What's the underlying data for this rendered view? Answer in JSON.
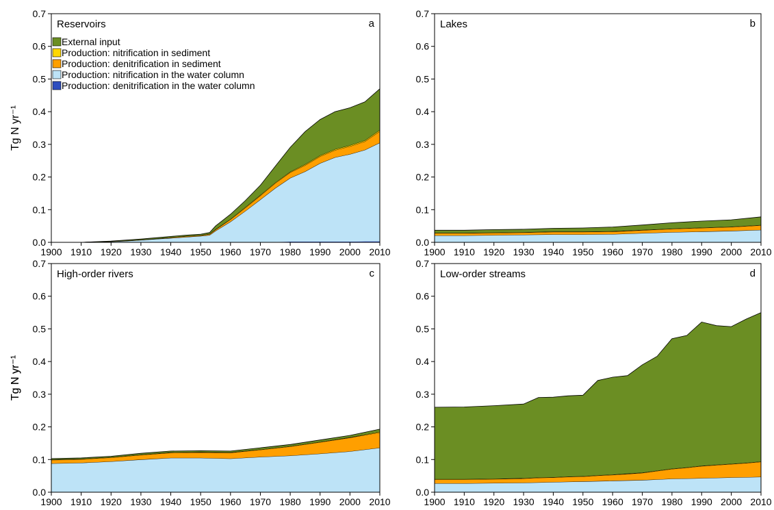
{
  "figure": {
    "colors": {
      "external_input": "#6b8e23",
      "nitrification_sediment": "#ffd700",
      "denitrification_sediment": "#ff9f00",
      "nitrification_water": "#bde3f7",
      "denitrification_water": "#2e4ebf"
    },
    "legend": [
      {
        "label": "External input",
        "color_key": "external_input"
      },
      {
        "label": "Production: nitrification in sediment",
        "color_key": "nitrification_sediment"
      },
      {
        "label": "Production: denitrification in sediment",
        "color_key": "denitrification_sediment"
      },
      {
        "label": "Production: nitrification in the water column",
        "color_key": "nitrification_water"
      },
      {
        "label": "Production: denitrification in the water column",
        "color_key": "denitrification_water"
      }
    ]
  },
  "chart_data": [
    {
      "type": "area",
      "panel": "a",
      "title": "Reservoirs",
      "ylabel": "Tg N yr⁻¹",
      "xlim": [
        1900,
        2010
      ],
      "ylim": [
        0,
        0.7
      ],
      "xticks": [
        1900,
        1910,
        1920,
        1930,
        1940,
        1950,
        1960,
        1970,
        1980,
        1990,
        2000,
        2010
      ],
      "yticks": [
        "0.0",
        "0.1",
        "0.2",
        "0.3",
        "0.4",
        "0.5",
        "0.6",
        "0.7"
      ],
      "legend_position": "top-left",
      "stacked": true,
      "x": [
        1900,
        1910,
        1915,
        1920,
        1925,
        1930,
        1935,
        1940,
        1945,
        1950,
        1953,
        1955,
        1960,
        1965,
        1970,
        1975,
        1980,
        1985,
        1990,
        1995,
        2000,
        2005,
        2010
      ],
      "series": [
        {
          "name": "Production: denitrification in the water column",
          "color_key": "denitrification_water",
          "values": [
            0,
            0,
            0,
            0,
            0,
            0,
            0,
            0,
            0,
            0,
            0,
            0,
            0.001,
            0.001,
            0.001,
            0.001,
            0.002,
            0.002,
            0.002,
            0.002,
            0.002,
            0.003,
            0.003
          ]
        },
        {
          "name": "Production: nitrification in the water column",
          "color_key": "nitrification_water",
          "values": [
            0,
            0,
            0.001,
            0.002,
            0.004,
            0.007,
            0.01,
            0.013,
            0.016,
            0.019,
            0.022,
            0.035,
            0.062,
            0.095,
            0.13,
            0.165,
            0.195,
            0.215,
            0.24,
            0.258,
            0.268,
            0.28,
            0.302
          ]
        },
        {
          "name": "Production: denitrification in sediment",
          "color_key": "denitrification_sediment",
          "values": [
            0,
            0,
            0,
            0.001,
            0.001,
            0.001,
            0.001,
            0.002,
            0.002,
            0.002,
            0.003,
            0.004,
            0.007,
            0.01,
            0.012,
            0.015,
            0.017,
            0.019,
            0.021,
            0.022,
            0.024,
            0.026,
            0.035
          ]
        },
        {
          "name": "Production: nitrification in sediment",
          "color_key": "nitrification_sediment",
          "values": [
            0,
            0,
            0,
            0,
            0,
            0,
            0,
            0,
            0.001,
            0.001,
            0.001,
            0.001,
            0.001,
            0.002,
            0.002,
            0.002,
            0.002,
            0.003,
            0.003,
            0.003,
            0.003,
            0.003,
            0.004
          ]
        },
        {
          "name": "External input",
          "color_key": "external_input",
          "values": [
            0,
            0,
            0.001,
            0.001,
            0.002,
            0.002,
            0.003,
            0.003,
            0.003,
            0.003,
            0.004,
            0.01,
            0.015,
            0.02,
            0.03,
            0.05,
            0.075,
            0.1,
            0.11,
            0.115,
            0.115,
            0.118,
            0.126
          ]
        }
      ]
    },
    {
      "type": "area",
      "panel": "b",
      "title": "Lakes",
      "ylabel": "",
      "xlim": [
        1900,
        2010
      ],
      "ylim": [
        0,
        0.7
      ],
      "xticks": [
        1900,
        1910,
        1920,
        1930,
        1940,
        1950,
        1960,
        1970,
        1980,
        1990,
        2000,
        2010
      ],
      "yticks": [
        "0.0",
        "0.1",
        "0.2",
        "0.3",
        "0.4",
        "0.5",
        "0.6",
        "0.7"
      ],
      "stacked": true,
      "x": [
        1900,
        1910,
        1920,
        1930,
        1940,
        1950,
        1960,
        1970,
        1980,
        1990,
        2000,
        2010
      ],
      "series": [
        {
          "name": "Production: denitrification in the water column",
          "color_key": "denitrification_water",
          "values": [
            0,
            0,
            0,
            0,
            0,
            0,
            0,
            0,
            0,
            0,
            0,
            0
          ]
        },
        {
          "name": "Production: nitrification in the water column",
          "color_key": "nitrification_water",
          "values": [
            0.021,
            0.021,
            0.022,
            0.023,
            0.024,
            0.024,
            0.025,
            0.028,
            0.031,
            0.033,
            0.035,
            0.038
          ]
        },
        {
          "name": "Production: denitrification in sediment",
          "color_key": "denitrification_sediment",
          "values": [
            0.007,
            0.007,
            0.007,
            0.007,
            0.008,
            0.008,
            0.008,
            0.009,
            0.01,
            0.011,
            0.012,
            0.014
          ]
        },
        {
          "name": "Production: nitrification in sediment",
          "color_key": "nitrification_sediment",
          "values": [
            0.001,
            0.001,
            0.001,
            0.001,
            0.001,
            0.001,
            0.001,
            0.001,
            0.001,
            0.001,
            0.001,
            0.001
          ]
        },
        {
          "name": "External input",
          "color_key": "external_input",
          "values": [
            0.008,
            0.008,
            0.009,
            0.009,
            0.01,
            0.011,
            0.013,
            0.015,
            0.018,
            0.02,
            0.021,
            0.025
          ]
        }
      ]
    },
    {
      "type": "area",
      "panel": "c",
      "title": "High-order rivers",
      "ylabel": "Tg N yr⁻¹",
      "xlim": [
        1900,
        2010
      ],
      "ylim": [
        0,
        0.7
      ],
      "xticks": [
        1900,
        1910,
        1920,
        1930,
        1940,
        1950,
        1960,
        1970,
        1980,
        1990,
        2000,
        2010
      ],
      "yticks": [
        "0.0",
        "0.1",
        "0.2",
        "0.3",
        "0.4",
        "0.5",
        "0.6",
        "0.7"
      ],
      "stacked": true,
      "x": [
        1900,
        1910,
        1920,
        1930,
        1940,
        1950,
        1960,
        1970,
        1980,
        1990,
        2000,
        2010
      ],
      "series": [
        {
          "name": "Production: denitrification in the water column",
          "color_key": "denitrification_water",
          "values": [
            0,
            0,
            0,
            0,
            0,
            0,
            0,
            0,
            0,
            0,
            0,
            0
          ]
        },
        {
          "name": "Production: nitrification in the water column",
          "color_key": "nitrification_water",
          "values": [
            0.088,
            0.09,
            0.094,
            0.1,
            0.105,
            0.105,
            0.103,
            0.108,
            0.112,
            0.118,
            0.125,
            0.136
          ]
        },
        {
          "name": "Production: denitrification in sediment",
          "color_key": "denitrification_sediment",
          "values": [
            0.011,
            0.011,
            0.012,
            0.014,
            0.016,
            0.017,
            0.018,
            0.022,
            0.028,
            0.035,
            0.042,
            0.047
          ]
        },
        {
          "name": "Production: nitrification in sediment",
          "color_key": "nitrification_sediment",
          "values": [
            0.001,
            0.001,
            0.001,
            0.001,
            0.001,
            0.001,
            0.001,
            0.001,
            0.001,
            0.001,
            0.001,
            0.002
          ]
        },
        {
          "name": "External input",
          "color_key": "external_input",
          "values": [
            0.003,
            0.003,
            0.003,
            0.004,
            0.004,
            0.004,
            0.004,
            0.005,
            0.005,
            0.006,
            0.006,
            0.008
          ]
        }
      ]
    },
    {
      "type": "area",
      "panel": "d",
      "title": "Low-order streams",
      "ylabel": "Tg N yr⁻¹",
      "xlim": [
        1900,
        2010
      ],
      "ylim": [
        0,
        0.7
      ],
      "xticks": [
        1900,
        1910,
        1920,
        1930,
        1940,
        1950,
        1960,
        1970,
        1980,
        1990,
        2000,
        2010
      ],
      "yticks": [
        "0.0",
        "0.1",
        "0.2",
        "0.3",
        "0.4",
        "0.5",
        "0.6",
        "0.7"
      ],
      "stacked": true,
      "x": [
        1900,
        1910,
        1920,
        1930,
        1935,
        1940,
        1945,
        1950,
        1955,
        1960,
        1965,
        1970,
        1975,
        1980,
        1985,
        1990,
        1995,
        2000,
        2005,
        2010
      ],
      "series": [
        {
          "name": "Production: denitrification in the water column",
          "color_key": "denitrification_water",
          "values": [
            0,
            0,
            0,
            0,
            0,
            0,
            0,
            0,
            0,
            0,
            0,
            0,
            0,
            0,
            0,
            0,
            0,
            0,
            0,
            0
          ]
        },
        {
          "name": "Production: nitrification in the water column",
          "color_key": "nitrification_water",
          "values": [
            0.027,
            0.027,
            0.028,
            0.029,
            0.03,
            0.031,
            0.032,
            0.033,
            0.034,
            0.035,
            0.036,
            0.037,
            0.039,
            0.041,
            0.042,
            0.043,
            0.044,
            0.045,
            0.046,
            0.047
          ]
        },
        {
          "name": "Production: denitrification in sediment",
          "color_key": "denitrification_sediment",
          "values": [
            0.012,
            0.012,
            0.012,
            0.013,
            0.014,
            0.014,
            0.015,
            0.015,
            0.017,
            0.018,
            0.02,
            0.022,
            0.026,
            0.03,
            0.033,
            0.037,
            0.039,
            0.041,
            0.043,
            0.046
          ]
        },
        {
          "name": "Production: nitrification in sediment",
          "color_key": "nitrification_sediment",
          "values": [
            0.001,
            0.001,
            0.001,
            0.001,
            0.001,
            0.001,
            0.001,
            0.001,
            0.001,
            0.001,
            0.001,
            0.001,
            0.001,
            0.001,
            0.001,
            0.001,
            0.001,
            0.001,
            0.001,
            0.001
          ]
        },
        {
          "name": "External input",
          "color_key": "external_input",
          "values": [
            0.22,
            0.221,
            0.224,
            0.227,
            0.245,
            0.245,
            0.247,
            0.248,
            0.29,
            0.298,
            0.3,
            0.33,
            0.35,
            0.398,
            0.404,
            0.44,
            0.426,
            0.42,
            0.44,
            0.456
          ]
        }
      ]
    }
  ]
}
